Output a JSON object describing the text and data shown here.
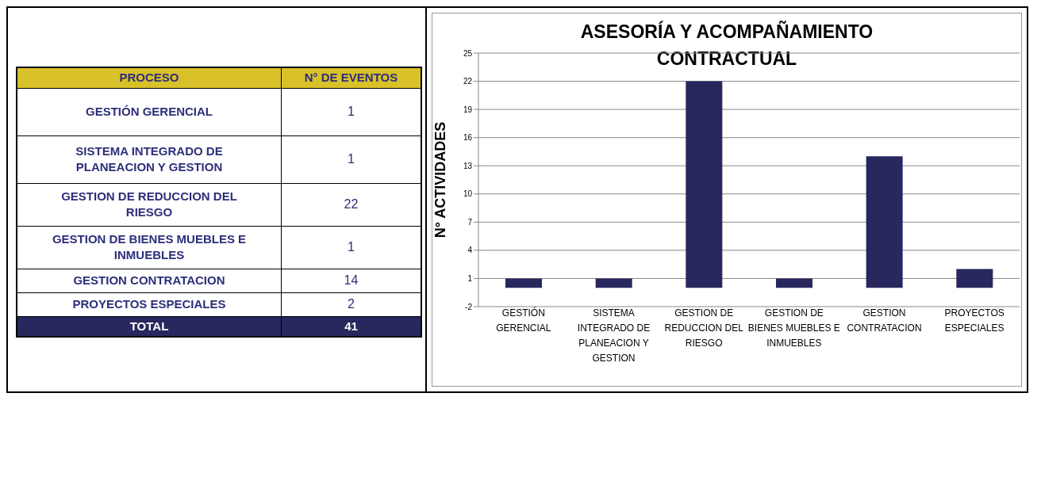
{
  "chart_data": [
    {
      "type": "other",
      "annotations": [
        "PROCESO",
        "N° DE EVENTOS",
        "TOTAL",
        "41"
      ],
      "categories": [
        "GESTIÓN GERENCIAL",
        "SISTEMA INTEGRADO DE PLANEACION Y GESTION",
        "GESTION DE REDUCCION DEL RIESGO",
        "GESTION DE BIENES MUEBLES E INMUEBLES",
        "GESTION CONTRATACION",
        "PROYECTOS ESPECIALES"
      ],
      "value_labels": [
        "1",
        "1",
        "22",
        "1",
        "14",
        "2"
      ]
    },
    {
      "type": "bar",
      "title": "ASESORÍA Y ACOMPAÑAMIENTO CONTRACTUAL",
      "ylabel": "N° ACTIVIDADES",
      "categories": [
        "GESTIÓN GERENCIAL",
        "SISTEMA INTEGRADO DE PLANEACION Y GESTION",
        "GESTION DE REDUCCION DEL RIESGO",
        "GESTION DE BIENES MUEBLES E INMUEBLES",
        "GESTION CONTRATACION",
        "PROYECTOS ESPECIALES"
      ],
      "values": [
        1,
        1,
        22,
        1,
        14,
        2
      ],
      "color": "#28285e",
      "ylim": [
        -2,
        25
      ],
      "yticks": [
        -2,
        1,
        4,
        7,
        10,
        13,
        16,
        19,
        22,
        25
      ],
      "grid": "y"
    }
  ]
}
